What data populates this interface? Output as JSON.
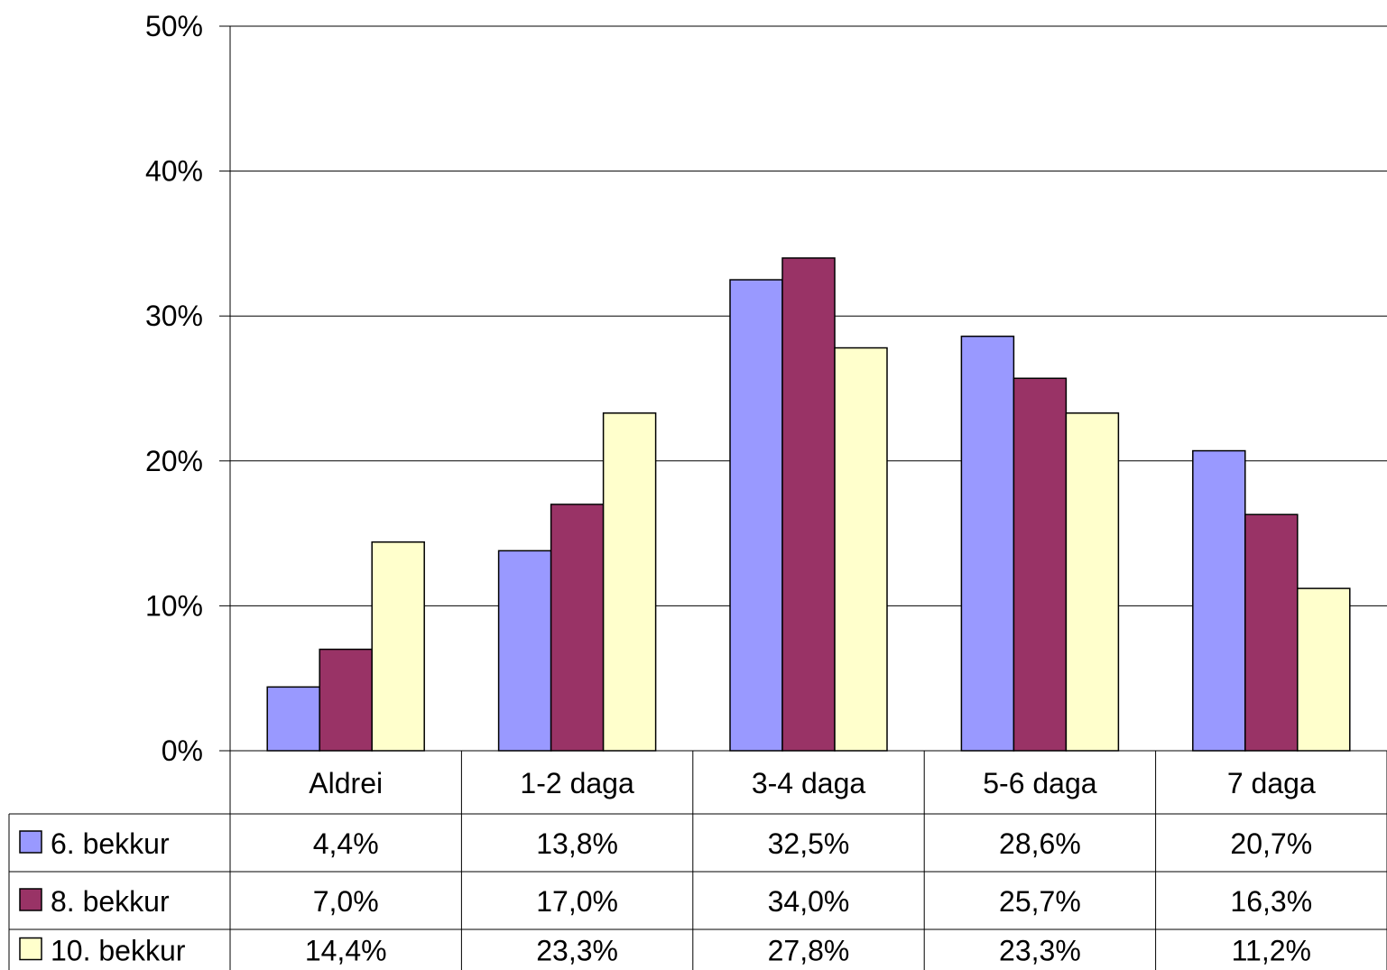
{
  "chart_data": {
    "type": "bar",
    "title": "",
    "xlabel": "",
    "ylabel": "",
    "categories": [
      "Aldrei",
      "1-2 daga",
      "3-4 daga",
      "5-6 daga",
      "7 daga"
    ],
    "ylim": [
      0,
      50
    ],
    "yticks": [
      "0%",
      "10%",
      "20%",
      "30%",
      "40%",
      "50%"
    ],
    "grid": true,
    "legend": "data-table-left",
    "series": [
      {
        "name": "6. bekkur",
        "color": "#9999ff",
        "values": [
          4.4,
          13.8,
          32.5,
          28.6,
          20.7
        ],
        "labels": [
          "4,4%",
          "13,8%",
          "32,5%",
          "28,6%",
          "20,7%"
        ]
      },
      {
        "name": "8. bekkur",
        "color": "#993366",
        "values": [
          7.0,
          17.0,
          34.0,
          25.7,
          16.3
        ],
        "labels": [
          "7,0%",
          "17,0%",
          "34,0%",
          "25,7%",
          "16,3%"
        ]
      },
      {
        "name": "10. bekkur",
        "color": "#ffffcc",
        "values": [
          14.4,
          23.3,
          27.8,
          23.3,
          11.2
        ],
        "labels": [
          "14,4%",
          "23,3%",
          "27,8%",
          "23,3%",
          "11,2%"
        ]
      }
    ]
  }
}
